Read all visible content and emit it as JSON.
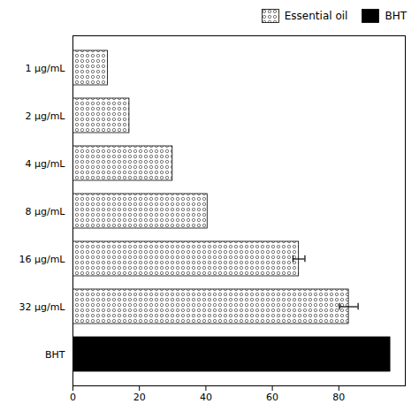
{
  "chart_data": {
    "type": "bar",
    "orientation": "horizontal",
    "categories": [
      "1 μg/mL",
      "2 μg/mL",
      "4 μg/mL",
      "8 μg/mL",
      "16 μg/mL",
      "32 μg/mL",
      "BHT"
    ],
    "series": [
      {
        "name": "Essential oil",
        "color": "#ffffff",
        "values": [
          10.5,
          17.0,
          30.0,
          40.5,
          68.0,
          83.0,
          null
        ],
        "errors": [
          0.0,
          0.0,
          0.0,
          0.0,
          1.8,
          2.8,
          null
        ]
      },
      {
        "name": "BHT",
        "color": "#000000",
        "values": [
          null,
          null,
          null,
          null,
          null,
          null,
          95.5
        ]
      }
    ],
    "xlim": [
      0,
      100
    ],
    "xticks": [
      0,
      20,
      40,
      60,
      80
    ],
    "grid": false,
    "legend": "upper right"
  }
}
